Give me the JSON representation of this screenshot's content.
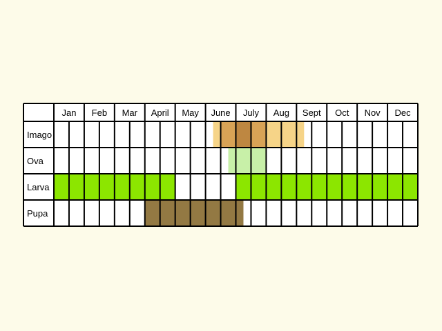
{
  "chart_data": {
    "type": "table",
    "months": [
      "Jan",
      "Feb",
      "Mar",
      "April",
      "May",
      "June",
      "July",
      "Aug",
      "Sept",
      "Oct",
      "Nov",
      "Dec"
    ],
    "half_month_cells_per_month": 2,
    "rows": [
      {
        "label": "Imago",
        "bands": [
          {
            "from_half_month": 10.5,
            "to_half_month": 11,
            "color": "#f6d488"
          },
          {
            "from_half_month": 11,
            "to_half_month": 12,
            "color": "#d8a356"
          },
          {
            "from_half_month": 12,
            "to_half_month": 13,
            "color": "#be8741"
          },
          {
            "from_half_month": 13,
            "to_half_month": 14,
            "color": "#d8a356"
          },
          {
            "from_half_month": 14,
            "to_half_month": 16.5,
            "color": "#f6d488"
          }
        ]
      },
      {
        "label": "Ova",
        "bands": [
          {
            "from_half_month": 11.5,
            "to_half_month": 14,
            "color": "#c8f0a8"
          }
        ]
      },
      {
        "label": "Larva",
        "bands": [
          {
            "from_half_month": 0,
            "to_half_month": 8,
            "color": "#8ce600"
          },
          {
            "from_half_month": 12,
            "to_half_month": 24,
            "color": "#8ce600"
          }
        ]
      },
      {
        "label": "Pupa",
        "bands": [
          {
            "from_half_month": 6,
            "to_half_month": 12.5,
            "color": "#937943"
          }
        ]
      }
    ],
    "grid": true
  },
  "colors": {
    "background": "#fdfbe9",
    "cell": "#ffffff",
    "border": "#000000"
  }
}
